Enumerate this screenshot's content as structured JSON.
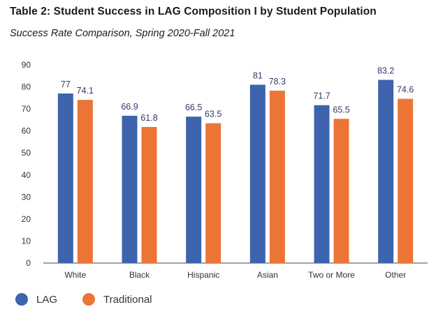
{
  "title": "Table 2: Student Success in LAG Composition I by Student Population",
  "subtitle": "Success Rate Comparison, Spring 2020-Fall 2021",
  "colors": {
    "lag": "#3d64ad",
    "traditional": "#ec7535",
    "axis": "#444444"
  },
  "chart_data": {
    "type": "bar",
    "title": "Table 2: Student Success in LAG Composition I by Student Population",
    "subtitle": "Success Rate Comparison, Spring 2020-Fall 2021",
    "categories": [
      "White",
      "Black",
      "Hispanic",
      "Asian",
      "Two or More",
      "Other"
    ],
    "series": [
      {
        "name": "LAG",
        "values": [
          77,
          66.9,
          66.5,
          81,
          71.7,
          83.2
        ]
      },
      {
        "name": "Traditional",
        "values": [
          74.1,
          61.8,
          63.5,
          78.3,
          65.5,
          74.6
        ]
      }
    ],
    "ylim": [
      0,
      90
    ],
    "yticks": [
      0,
      10,
      20,
      30,
      40,
      50,
      60,
      70,
      80,
      90
    ],
    "xlabel": "",
    "ylabel": "",
    "grid": false,
    "legend": "bottom-left"
  }
}
